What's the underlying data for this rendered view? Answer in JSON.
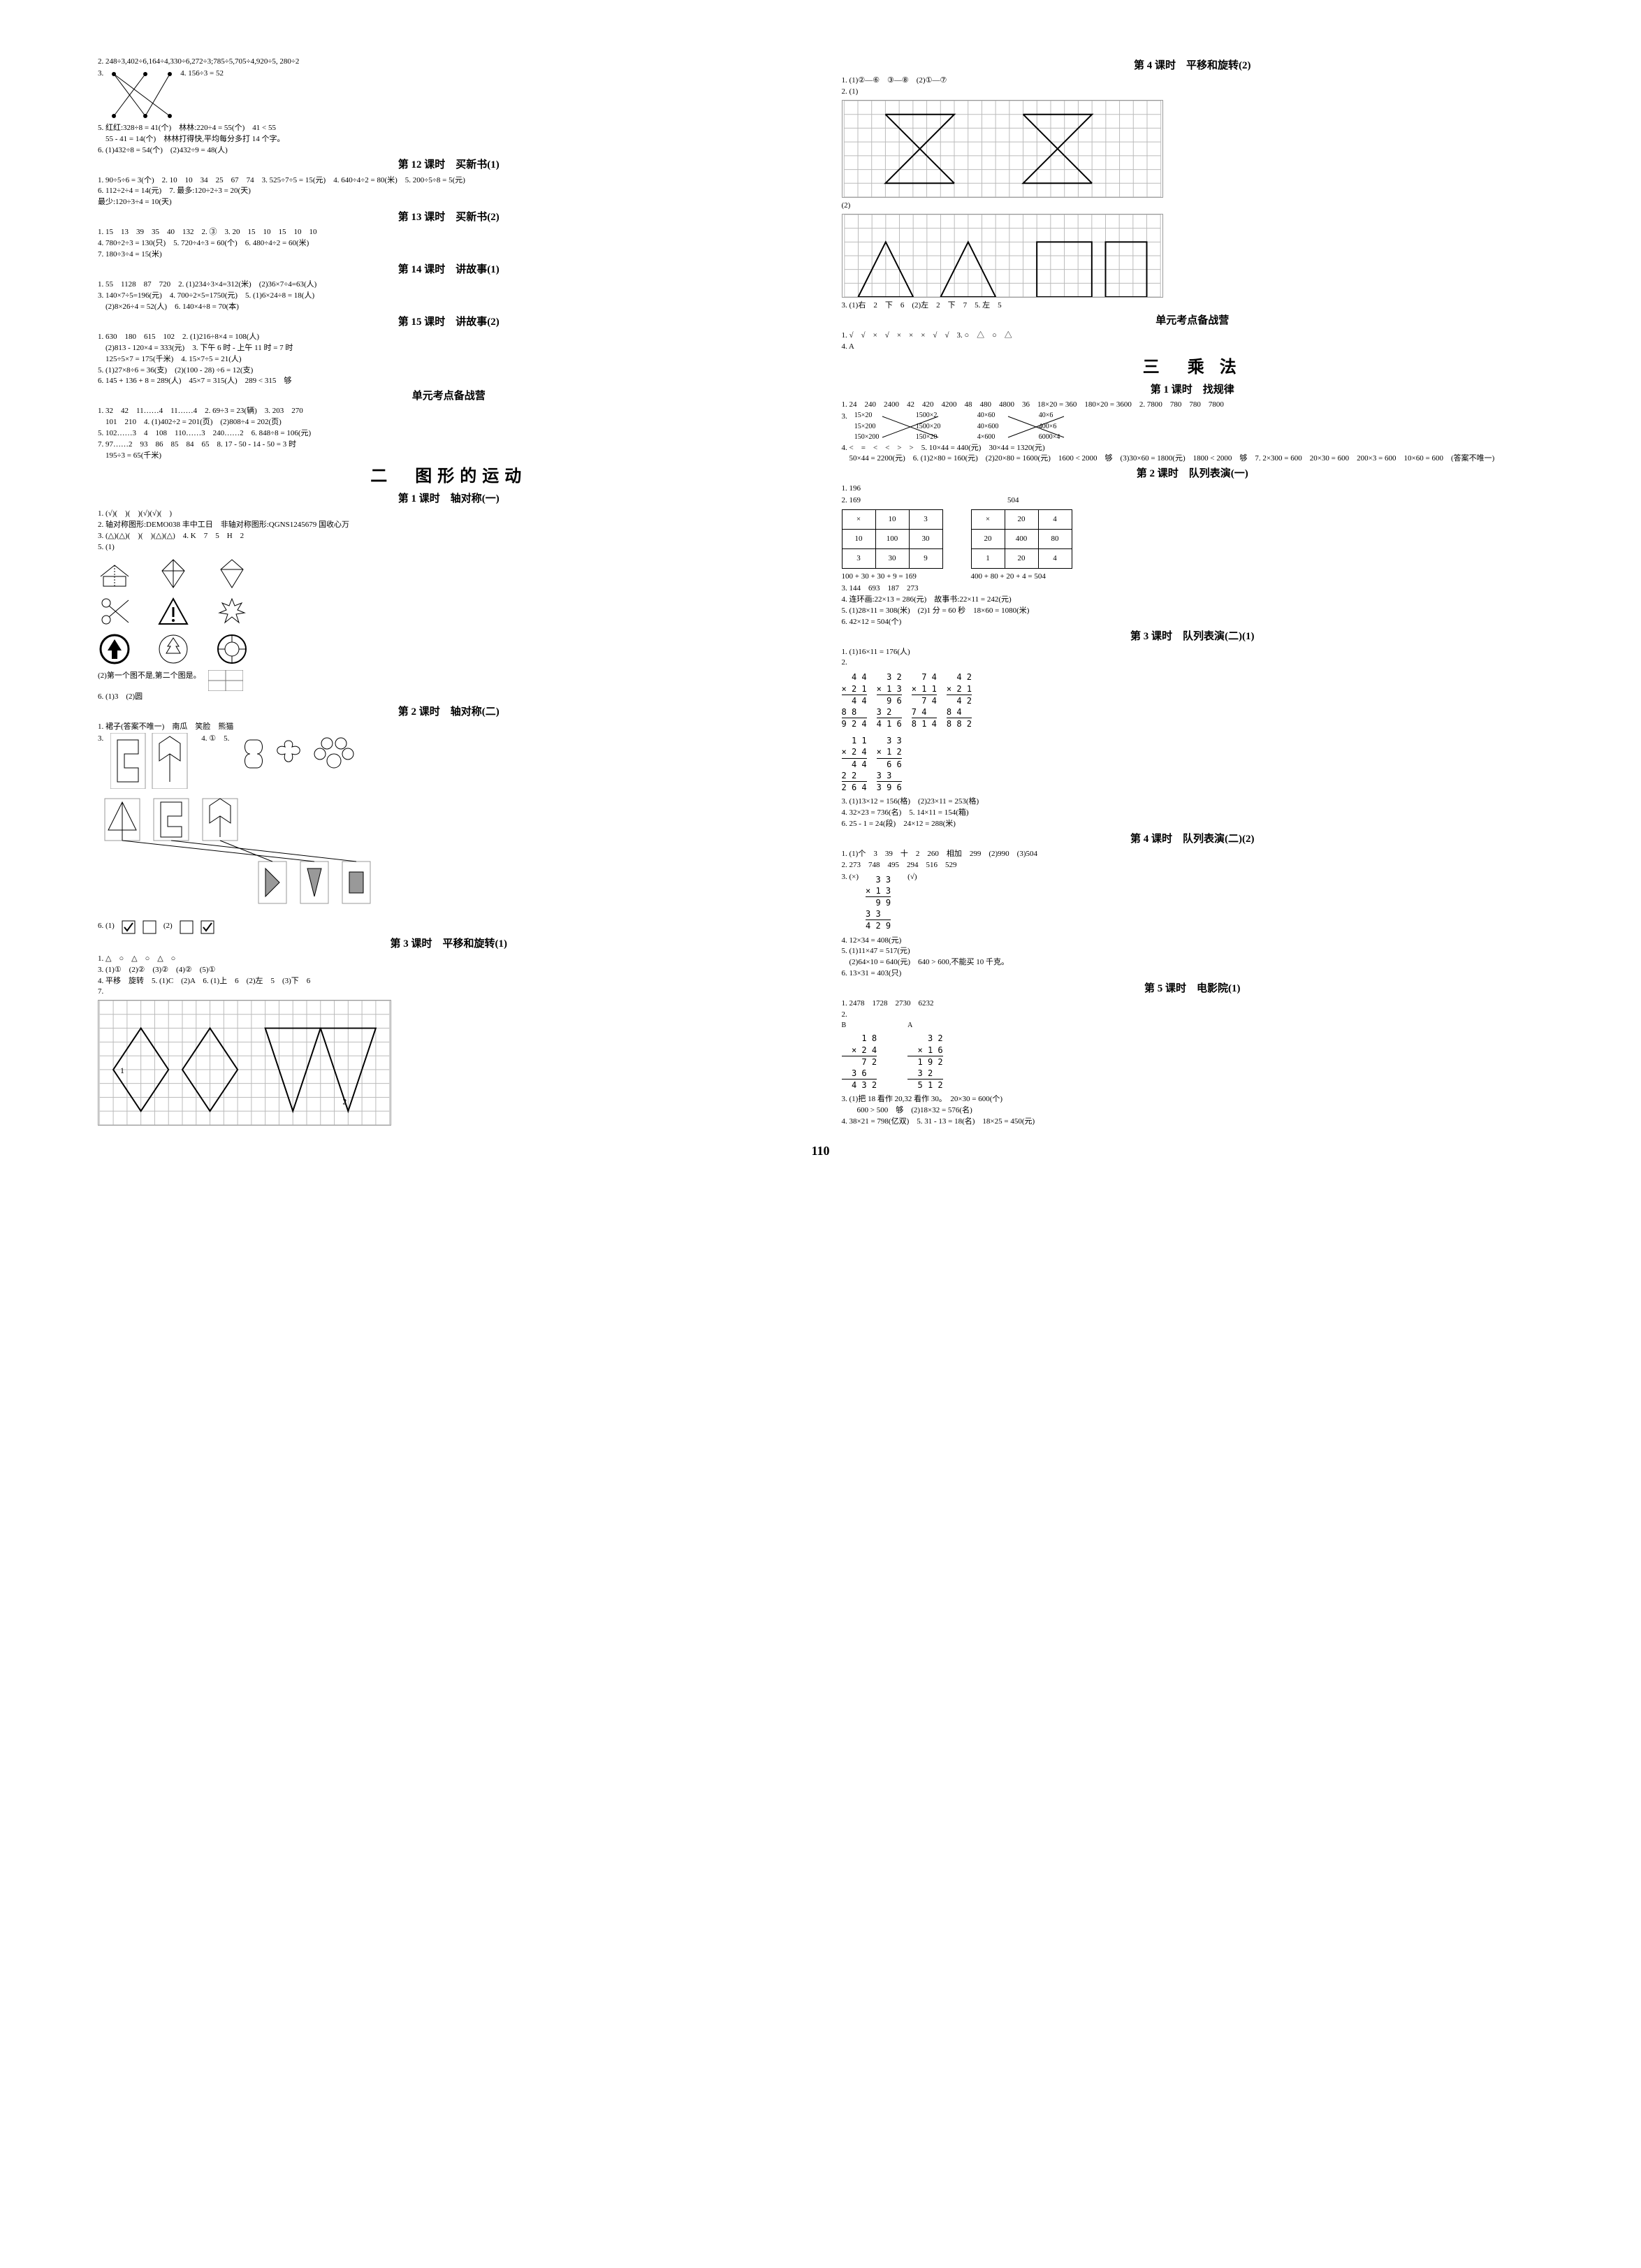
{
  "pageNumber": "110",
  "left": {
    "l2": "2. 248÷3,402÷6,164÷4,330÷6,272÷3;785÷5,705÷4,920÷5, 280÷2",
    "l3": "3.",
    "l4": "4. 156÷3 = 52",
    "l5": "5. 红红:328÷8 = 41(个)　林林:220÷4 = 55(个)　41 < 55",
    "l5b": "　55 - 41 = 14(个)　林林打得快,平均每分多打 14 个字。",
    "l6": "6. (1)432÷8 = 54(个)　(2)432÷9 = 48(人)",
    "s12_title": "第 12 课时　买新书(1)",
    "s12_1": "1. 90÷5÷6 = 3(个)　2. 10　10　34　25　67　74　3. 525÷7÷5 = 15(元)　4. 640÷4÷2 = 80(米)　5. 200÷5÷8 = 5(元)",
    "s12_6": "6. 112÷2÷4 = 14(元)　7. 最多:120÷2÷3 = 20(天)",
    "s12_6b": "最少:120÷3÷4 = 10(天)",
    "s13_title": "第 13 课时　买新书(2)",
    "s13_1": "1. 15　13　39　35　40　132　2. ③　3. 20　15　10　15　10　10",
    "s13_4": "4. 780÷2÷3 = 130(只)　5. 720÷4÷3 = 60(个)　6. 480÷4÷2 = 60(米)",
    "s13_7": "7. 180÷3÷4 = 15(米)",
    "s14_title": "第 14 课时　讲故事(1)",
    "s14_1": "1. 55　1128　87　720　2. (1)234÷3×4=312(米)　(2)36×7÷4=63(人)",
    "s14_3": "3. 140×7÷5=196(元)　4. 700÷2×5=1750(元)　5. (1)6×24÷8 = 18(人)",
    "s14_5b": "　(2)8×26÷4 = 52(人)　6. 140×4÷8 = 70(本)",
    "s15_title": "第 15 课时　讲故事(2)",
    "s15_1": "1. 630　180　615　102　2. (1)216÷8×4 = 108(人)",
    "s15_2": "　(2)813 - 120×4 = 333(元)　3. 下午 6 时 - 上午 11 时 = 7 时",
    "s15_3": "　125÷5×7 = 175(千米)　4. 15×7÷5 = 21(人)",
    "s15_5": "5. (1)27×8÷6 = 36(支)　(2)(100 - 28) ÷6 = 12(支)",
    "s15_6": "6. 145 + 136 + 8 = 289(人)　45×7 = 315(人)　289 < 315　够",
    "unit_exam_title": "单元考点备战营",
    "ue_1": "1. 32　42　11……4　11……4　2. 69÷3 = 23(辆)　3. 203　270",
    "ue_1b": "　101　210　4. (1)402÷2 = 201(页)　(2)808÷4 = 202(页)",
    "ue_5": "5. 102……3　4　108　110……3　240……2　6. 848÷8 = 106(元)",
    "ue_7": "7. 97……2　93　86　85　84　65　8. 17 - 50 - 14 - 50 = 3 时",
    "ue_7b": "　195÷3 = 65(千米)",
    "ch2_title": "二　图形的运动",
    "c2s1_title": "第 1 课时　轴对称(一)",
    "c2s1_1": "1. (√)(　)(　)(√)(√)(　)",
    "c2s1_2": "2. 轴对称图形:DEMO038 丰中工日　非轴对称图形:QGNS1245679 国收心万",
    "c2s1_3": "3. (△)(△)(　)(　)(△)(△)　4. K　7　5　H　2",
    "c2s1_5": "5. (1)",
    "c2s1_5b": "(2)第一个图不是,第二个图是。",
    "c2s1_6": "6. (1)3　(2)圆",
    "c2s2_title": "第 2 课时　轴对称(二)",
    "c2s2_1": "1. 裙子(答案不唯一)　南瓜　笑脸　熊猫",
    "c2s2_3": "3.",
    "c2s2_4": "4. ①　5.",
    "c2s2_6": "6. (1)",
    "c2s2_6b": "(2)",
    "c2s3_title": "第 3 课时　平移和旋转(1)",
    "c2s3_1": "1. △　○　△　○　△　○",
    "c2s3_3": "3. (1)①　(2)②　(3)②　(4)②　(5)①",
    "c2s3_4": "4. 平移　旋转　5. (1)C　(2)A　6. (1)上　6　(2)左　5　(3)下　6",
    "c2s3_7": "7."
  },
  "right": {
    "c2s4_title": "第 4 课时　平移和旋转(2)",
    "c2s4_1": "1. (1)②—⑥　③—⑧　(2)①—⑦",
    "c2s4_2": "2. (1)",
    "c2s4_2b": "(2)",
    "c2s4_3": "3. (1)右　2　下　6　(2)左　2　下　7　5. 左　5",
    "unit_exam_title": "单元考点备战营",
    "ue_1": "1. √　√　×　√　×　×　×　√　√　3. ○　△　○　△",
    "ue_4": "4. A",
    "ch3_title": "三　乘 法",
    "c3s1_title": "第 1 课时　找规律",
    "c3s1_1": "1. 24　240　2400　42　420　4200　48　480　4800　36　18×20 = 360　180×20 = 3600　2. 7800　780　780　7800",
    "c3s1_3": "3.",
    "c3s1_3_items": [
      "15×20",
      "1500×2",
      "40×60",
      "40×6",
      "15×200",
      "1500×20",
      "40×600",
      "400×6",
      "150×200",
      "150×20",
      "4×600",
      "6000×4"
    ],
    "c3s1_4": "4. <　=　<　<　>　>　5. 10×44 = 440(元)　30×44 = 1320(元)",
    "c3s1_5": "　50×44 = 2200(元)　6. (1)2×80 = 160(元)　(2)20×80 = 1600(元)　1600 < 2000　够　(3)30×60 = 1800(元)　1800 < 2000　够　7. 2×300 = 600　20×30 = 600　200×3 = 600　10×60 = 600　(答案不唯一)",
    "c3s2_title": "第 2 课时　队列表演(一)",
    "c3s2_1": "1. 196",
    "c3s2_2": "2. 169",
    "c3s2_2b": "504",
    "tbl1": {
      "header": [
        "×",
        "10",
        "3"
      ],
      "r1": [
        "10",
        "100",
        "30"
      ],
      "r2": [
        "3",
        "30",
        "9"
      ],
      "sum": "100 + 30 + 30 + 9 = 169"
    },
    "tbl2": {
      "header": [
        "×",
        "20",
        "4"
      ],
      "r1": [
        "20",
        "400",
        "80"
      ],
      "r2": [
        "1",
        "20",
        "4"
      ],
      "sum": "400 + 80 + 20 + 4 = 504"
    },
    "c3s2_3": "3. 144　693　187　273",
    "c3s2_4": "4. 连环画:22×13 = 286(元)　故事书:22×11 = 242(元)",
    "c3s2_5": "5. (1)28×11 = 308(米)　(2)1 分 = 60 秒　18×60 = 1080(米)",
    "c3s2_6": "6. 42×12 = 504(个)",
    "c3s3_title": "第 3 课时　队列表演(二)(1)",
    "c3s3_1": "1. (1)16×11 = 176(人)",
    "c3s3_2": "2.",
    "calcs_a": [
      {
        "lines": [
          "  4 4",
          "× 2 1",
          "  4 4",
          "8 8  ",
          "9 2 4"
        ]
      },
      {
        "lines": [
          "  3 2",
          "× 1 3",
          "  9 6",
          "3 2  ",
          "4 1 6"
        ]
      },
      {
        "lines": [
          "  7 4",
          "× 1 1",
          "  7 4",
          "7 4  ",
          "8 1 4"
        ]
      },
      {
        "lines": [
          "  4 2",
          "× 2 1",
          "  4 2",
          "8 4  ",
          "8 8 2"
        ]
      }
    ],
    "calcs_b": [
      {
        "lines": [
          "  1 1",
          "× 2 4",
          "  4 4",
          "2 2  ",
          "2 6 4"
        ]
      },
      {
        "lines": [
          "  3 3",
          "× 1 2",
          "  6 6",
          "3 3  ",
          "3 9 6"
        ]
      }
    ],
    "c3s3_3": "3. (1)13×12 = 156(格)　(2)23×11 = 253(格)",
    "c3s3_4": "4. 32×23 = 736(名)　5. 14×11 = 154(箱)",
    "c3s3_6": "6. 25 - 1 = 24(段)　24×12 = 288(米)",
    "c3s4_title": "第 4 课时　队列表演(二)(2)",
    "c3s4_1": "1. (1)个　3　39　十　2　260　相加　299　(2)990　(3)504",
    "c3s4_2": "2. 273　748　495　294　516　529",
    "c3s4_3": "3. (×)",
    "c3s4_3b": "(√)",
    "calc_c": {
      "lines": [
        "  3 3",
        "× 1 3",
        "  9 9",
        "3 3  ",
        "4 2 9"
      ]
    },
    "c3s4_4": "4. 12×34 = 408(元)",
    "c3s4_5": "5. (1)11×47 = 517(元)",
    "c3s4_5b": "　(2)64×10 = 640(元)　640 > 600,不能买 10 千克。",
    "c3s4_6": "6. 13×31 = 403(只)",
    "c3s5_title": "第 5 课时　电影院(1)",
    "c3s5_1": "1. 2478　1728　2730　6232",
    "c3s5_2": "2.",
    "calc_d": [
      {
        "label": "B",
        "lines": [
          "    1 8",
          "  × 2 4",
          "    7 2",
          "  3 6  ",
          "  4 3 2"
        ]
      },
      {
        "label": "A",
        "lines": [
          "    3 2",
          "  × 1 6",
          "  1 9 2",
          "  3 2  ",
          "  5 1 2"
        ]
      }
    ],
    "c3s5_3": "3. (1)把 18 看作 20,32 看作 30。　20×30 = 600(个)",
    "c3s5_3b": "　　600 > 500　够　(2)18×32 = 576(名)",
    "c3s5_4": "4. 38×21 = 798(亿双)　5. 31 - 13 = 18(名)　18×25 = 450(元)"
  },
  "colors": {
    "text": "#000000",
    "bg": "#ffffff",
    "gridline": "#777777"
  }
}
